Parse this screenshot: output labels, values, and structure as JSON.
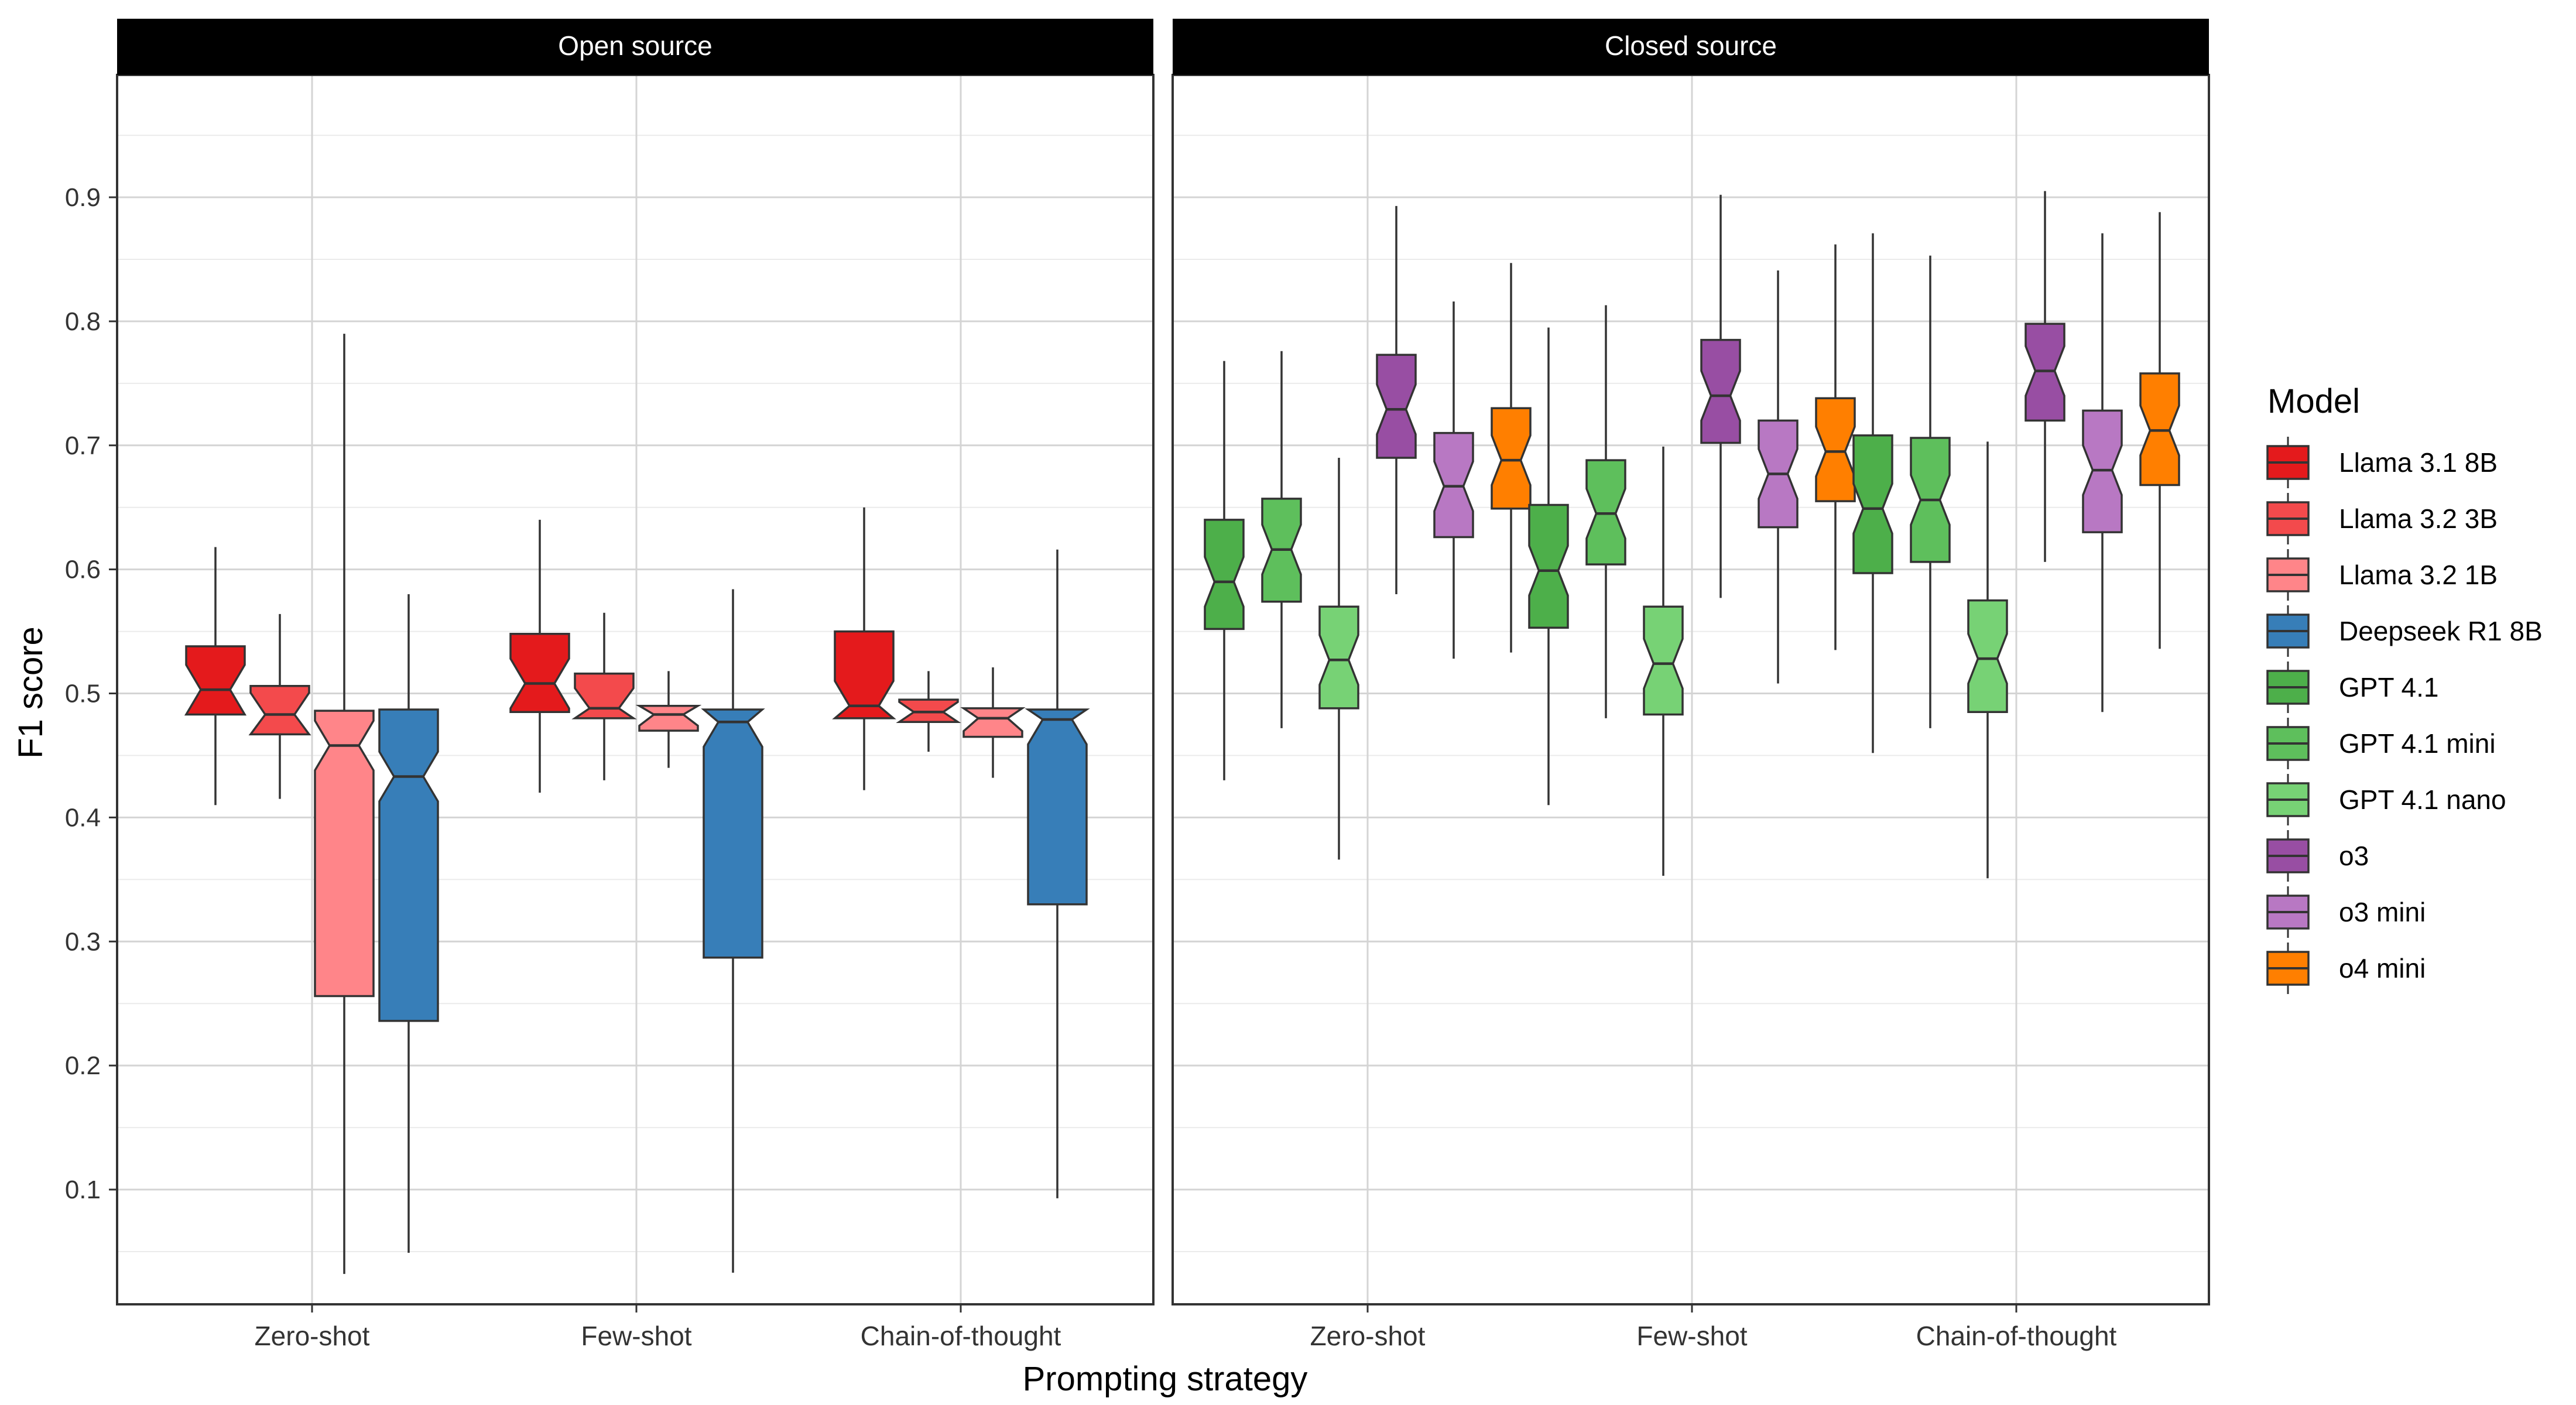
{
  "chart_data": {
    "type": "boxplot",
    "variant": "notched",
    "xlabel": "Prompting strategy",
    "ylabel": "F1 score",
    "ylim": [
      0.0,
      1.0
    ],
    "y_ticks": [
      "0.1",
      "0.2",
      "0.3",
      "0.4",
      "0.5",
      "0.6",
      "0.7",
      "0.8",
      "0.9"
    ],
    "y_tick_values": [
      0.1,
      0.2,
      0.3,
      0.4,
      0.5,
      0.6,
      0.7,
      0.8,
      0.9
    ],
    "categories": [
      "Zero-shot",
      "Few-shot",
      "Chain-of-thought"
    ],
    "legend": {
      "title": "Model",
      "placement": "right",
      "entries": [
        {
          "name": "Llama 3.1 8B",
          "color": "#e41a1c"
        },
        {
          "name": "Llama 3.2 3B",
          "color": "#f34a4c"
        },
        {
          "name": "Llama 3.2 1B",
          "color": "#ff8589"
        },
        {
          "name": "Deepseek R1 8B",
          "color": "#377eb8"
        },
        {
          "name": "GPT 4.1",
          "color": "#4daf4a"
        },
        {
          "name": "GPT 4.1 mini",
          "color": "#5ebf5c"
        },
        {
          "name": "GPT 4.1 nano",
          "color": "#77d275"
        },
        {
          "name": "o3",
          "color": "#984ea3"
        },
        {
          "name": "o3 mini",
          "color": "#b878c3"
        },
        {
          "name": "o4 mini",
          "color": "#ff7f00"
        }
      ]
    },
    "panels": [
      {
        "title": "Open source",
        "models": [
          "Llama 3.1 8B",
          "Llama 3.2 3B",
          "Llama 3.2 1B",
          "Deepseek R1 8B"
        ],
        "boxes": {
          "Zero-shot": [
            {
              "model": "Llama 3.1 8B",
              "whisker_low": 0.41,
              "q1": 0.483,
              "median": 0.503,
              "q3": 0.538,
              "whisker_high": 0.618
            },
            {
              "model": "Llama 3.2 3B",
              "whisker_low": 0.415,
              "q1": 0.467,
              "median": 0.483,
              "q3": 0.506,
              "whisker_high": 0.564
            },
            {
              "model": "Llama 3.2 1B",
              "whisker_low": 0.032,
              "q1": 0.256,
              "median": 0.458,
              "q3": 0.486,
              "whisker_high": 0.79
            },
            {
              "model": "Deepseek R1 8B",
              "whisker_low": 0.049,
              "q1": 0.236,
              "median": 0.433,
              "q3": 0.487,
              "whisker_high": 0.58
            }
          ],
          "Few-shot": [
            {
              "model": "Llama 3.1 8B",
              "whisker_low": 0.42,
              "q1": 0.485,
              "median": 0.508,
              "q3": 0.548,
              "whisker_high": 0.64
            },
            {
              "model": "Llama 3.2 3B",
              "whisker_low": 0.43,
              "q1": 0.48,
              "median": 0.488,
              "q3": 0.516,
              "whisker_high": 0.565
            },
            {
              "model": "Llama 3.2 1B",
              "whisker_low": 0.44,
              "q1": 0.47,
              "median": 0.483,
              "q3": 0.49,
              "whisker_high": 0.518
            },
            {
              "model": "Deepseek R1 8B",
              "whisker_low": 0.033,
              "q1": 0.287,
              "median": 0.477,
              "q3": 0.487,
              "whisker_high": 0.584
            }
          ],
          "Chain-of-thought": [
            {
              "model": "Llama 3.1 8B",
              "whisker_low": 0.422,
              "q1": 0.48,
              "median": 0.49,
              "q3": 0.55,
              "whisker_high": 0.65
            },
            {
              "model": "Llama 3.2 3B",
              "whisker_low": 0.453,
              "q1": 0.477,
              "median": 0.485,
              "q3": 0.495,
              "whisker_high": 0.518
            },
            {
              "model": "Llama 3.2 1B",
              "whisker_low": 0.432,
              "q1": 0.465,
              "median": 0.48,
              "q3": 0.488,
              "whisker_high": 0.521
            },
            {
              "model": "Deepseek R1 8B",
              "whisker_low": 0.093,
              "q1": 0.33,
              "median": 0.479,
              "q3": 0.487,
              "whisker_high": 0.616
            }
          ]
        }
      },
      {
        "title": "Closed source",
        "models": [
          "GPT 4.1",
          "GPT 4.1 mini",
          "GPT 4.1 nano",
          "o3",
          "o3 mini",
          "o4 mini"
        ],
        "boxes": {
          "Zero-shot": [
            {
              "model": "GPT 4.1",
              "whisker_low": 0.43,
              "q1": 0.552,
              "median": 0.59,
              "q3": 0.64,
              "whisker_high": 0.768
            },
            {
              "model": "GPT 4.1 mini",
              "whisker_low": 0.472,
              "q1": 0.574,
              "median": 0.616,
              "q3": 0.657,
              "whisker_high": 0.776
            },
            {
              "model": "GPT 4.1 nano",
              "whisker_low": 0.366,
              "q1": 0.488,
              "median": 0.527,
              "q3": 0.57,
              "whisker_high": 0.69
            },
            {
              "model": "o3",
              "whisker_low": 0.58,
              "q1": 0.69,
              "median": 0.729,
              "q3": 0.773,
              "whisker_high": 0.893
            },
            {
              "model": "o3 mini",
              "whisker_low": 0.528,
              "q1": 0.626,
              "median": 0.667,
              "q3": 0.71,
              "whisker_high": 0.816
            },
            {
              "model": "o4 mini",
              "whisker_low": 0.533,
              "q1": 0.649,
              "median": 0.688,
              "q3": 0.73,
              "whisker_high": 0.847
            }
          ],
          "Few-shot": [
            {
              "model": "GPT 4.1",
              "whisker_low": 0.41,
              "q1": 0.553,
              "median": 0.599,
              "q3": 0.652,
              "whisker_high": 0.795
            },
            {
              "model": "GPT 4.1 mini",
              "whisker_low": 0.48,
              "q1": 0.604,
              "median": 0.645,
              "q3": 0.688,
              "whisker_high": 0.813
            },
            {
              "model": "GPT 4.1 nano",
              "whisker_low": 0.353,
              "q1": 0.483,
              "median": 0.524,
              "q3": 0.57,
              "whisker_high": 0.699
            },
            {
              "model": "o3",
              "whisker_low": 0.577,
              "q1": 0.702,
              "median": 0.74,
              "q3": 0.785,
              "whisker_high": 0.902
            },
            {
              "model": "o3 mini",
              "whisker_low": 0.508,
              "q1": 0.634,
              "median": 0.677,
              "q3": 0.72,
              "whisker_high": 0.841
            },
            {
              "model": "o4 mini",
              "whisker_low": 0.535,
              "q1": 0.655,
              "median": 0.695,
              "q3": 0.738,
              "whisker_high": 0.862
            }
          ],
          "Chain-of-thought": [
            {
              "model": "GPT 4.1",
              "whisker_low": 0.452,
              "q1": 0.597,
              "median": 0.649,
              "q3": 0.708,
              "whisker_high": 0.871
            },
            {
              "model": "GPT 4.1 mini",
              "whisker_low": 0.472,
              "q1": 0.606,
              "median": 0.656,
              "q3": 0.706,
              "whisker_high": 0.853
            },
            {
              "model": "GPT 4.1 nano",
              "whisker_low": 0.351,
              "q1": 0.485,
              "median": 0.528,
              "q3": 0.575,
              "whisker_high": 0.703
            },
            {
              "model": "o3",
              "whisker_low": 0.606,
              "q1": 0.72,
              "median": 0.76,
              "q3": 0.798,
              "whisker_high": 0.905
            },
            {
              "model": "o3 mini",
              "whisker_low": 0.485,
              "q1": 0.63,
              "median": 0.68,
              "q3": 0.728,
              "whisker_high": 0.871
            },
            {
              "model": "o4 mini",
              "whisker_low": 0.536,
              "q1": 0.668,
              "median": 0.712,
              "q3": 0.758,
              "whisker_high": 0.888
            }
          ]
        }
      }
    ]
  }
}
